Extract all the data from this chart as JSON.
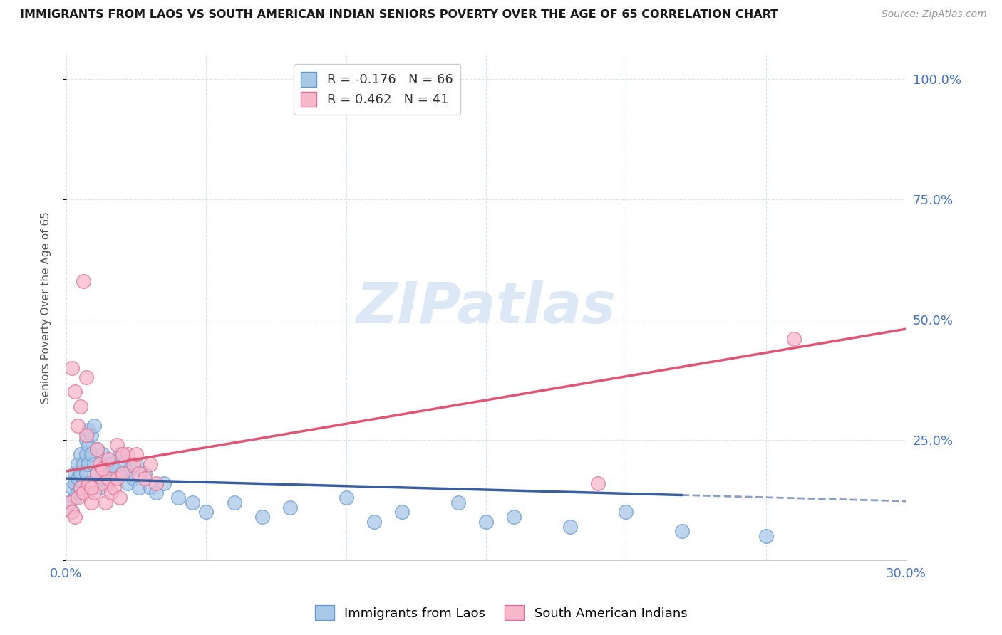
{
  "title": "IMMIGRANTS FROM LAOS VS SOUTH AMERICAN INDIAN SENIORS POVERTY OVER THE AGE OF 65 CORRELATION CHART",
  "source": "Source: ZipAtlas.com",
  "ylabel": "Seniors Poverty Over the Age of 65",
  "xlim": [
    0.0,
    0.3
  ],
  "ylim": [
    0.0,
    1.05
  ],
  "xticks": [
    0.0,
    0.05,
    0.1,
    0.15,
    0.2,
    0.25,
    0.3
  ],
  "xticklabels": [
    "0.0%",
    "",
    "",
    "",
    "",
    "",
    "30.0%"
  ],
  "yticks": [
    0.0,
    0.25,
    0.5,
    0.75,
    1.0
  ],
  "yticklabels": [
    "",
    "25.0%",
    "50.0%",
    "75.0%",
    "100.0%"
  ],
  "laos_color": "#a8c8e8",
  "laos_edge_color": "#6699cc",
  "sa_indian_color": "#f8b8cc",
  "sa_indian_edge_color": "#e07090",
  "laos_line_color": "#3a5fa0",
  "sa_indian_line_color": "#e05575",
  "legend_laos_label": "R = -0.176   N = 66",
  "legend_sa_label": "R = 0.462   N = 41",
  "bottom_legend_laos": "Immigrants from Laos",
  "bottom_legend_sa": "South American Indians",
  "laos_R": -0.176,
  "sa_R": 0.462,
  "laos_scatter_x": [
    0.001,
    0.002,
    0.002,
    0.003,
    0.003,
    0.003,
    0.004,
    0.004,
    0.004,
    0.005,
    0.005,
    0.005,
    0.006,
    0.006,
    0.006,
    0.007,
    0.007,
    0.007,
    0.008,
    0.008,
    0.008,
    0.009,
    0.009,
    0.01,
    0.01,
    0.01,
    0.011,
    0.011,
    0.012,
    0.012,
    0.013,
    0.013,
    0.014,
    0.015,
    0.015,
    0.016,
    0.017,
    0.018,
    0.019,
    0.02,
    0.021,
    0.022,
    0.023,
    0.024,
    0.025,
    0.026,
    0.028,
    0.03,
    0.032,
    0.035,
    0.04,
    0.045,
    0.05,
    0.06,
    0.07,
    0.08,
    0.1,
    0.11,
    0.12,
    0.14,
    0.15,
    0.16,
    0.18,
    0.2,
    0.22,
    0.25
  ],
  "laos_scatter_y": [
    0.12,
    0.15,
    0.1,
    0.13,
    0.16,
    0.18,
    0.14,
    0.17,
    0.2,
    0.15,
    0.18,
    0.22,
    0.16,
    0.2,
    0.14,
    0.25,
    0.18,
    0.22,
    0.2,
    0.24,
    0.27,
    0.22,
    0.26,
    0.28,
    0.2,
    0.16,
    0.23,
    0.18,
    0.2,
    0.15,
    0.22,
    0.17,
    0.19,
    0.21,
    0.16,
    0.2,
    0.19,
    0.17,
    0.22,
    0.18,
    0.2,
    0.16,
    0.19,
    0.17,
    0.2,
    0.15,
    0.18,
    0.15,
    0.14,
    0.16,
    0.13,
    0.12,
    0.1,
    0.12,
    0.09,
    0.11,
    0.13,
    0.08,
    0.1,
    0.12,
    0.08,
    0.09,
    0.07,
    0.1,
    0.06,
    0.05
  ],
  "sa_scatter_x": [
    0.001,
    0.002,
    0.003,
    0.004,
    0.005,
    0.006,
    0.007,
    0.008,
    0.009,
    0.01,
    0.011,
    0.012,
    0.013,
    0.014,
    0.015,
    0.016,
    0.017,
    0.018,
    0.019,
    0.02,
    0.022,
    0.024,
    0.026,
    0.028,
    0.03,
    0.032,
    0.003,
    0.005,
    0.007,
    0.009,
    0.011,
    0.013,
    0.015,
    0.018,
    0.02,
    0.025,
    0.002,
    0.004,
    0.006,
    0.26,
    0.19
  ],
  "sa_scatter_y": [
    0.12,
    0.1,
    0.35,
    0.13,
    0.15,
    0.14,
    0.38,
    0.16,
    0.12,
    0.14,
    0.18,
    0.2,
    0.16,
    0.12,
    0.17,
    0.14,
    0.15,
    0.17,
    0.13,
    0.18,
    0.22,
    0.2,
    0.18,
    0.17,
    0.2,
    0.16,
    0.09,
    0.32,
    0.26,
    0.15,
    0.23,
    0.19,
    0.21,
    0.24,
    0.22,
    0.22,
    0.4,
    0.28,
    0.58,
    0.46,
    0.16
  ],
  "background_color": "#ffffff",
  "grid_color": "#d8e4f0",
  "watermark_text": "ZIPatlas",
  "watermark_color": "#dce8f5",
  "tick_color": "#4472c4"
}
